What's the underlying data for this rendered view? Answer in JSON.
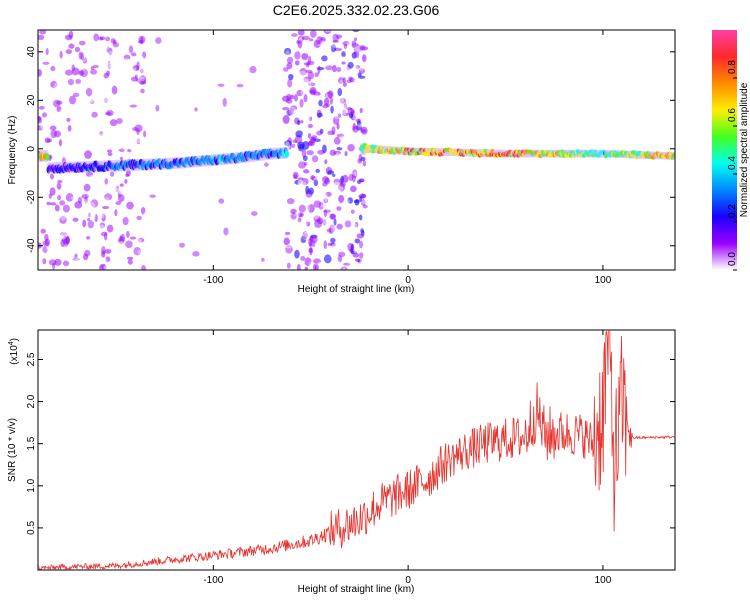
{
  "title": "C2E6.2025.332.02.23.G06",
  "chart_data": [
    {
      "type": "heatmap",
      "xlabel": "Height of straight line (km)",
      "ylabel": "Frequency (Hz)",
      "xlim": [
        -190,
        137
      ],
      "ylim": [
        -50,
        49
      ],
      "x_ticks": [
        "-100",
        "0",
        "100"
      ],
      "y_ticks": [
        "-40",
        "-20",
        "0",
        "20",
        "40"
      ],
      "colorbar": {
        "label": "Normalized spectral amplitude",
        "range": [
          0,
          1
        ],
        "ticks": [
          "0.0",
          "0.2",
          "0.4",
          "0.6",
          "0.8"
        ],
        "colors": [
          "#ff3ea8",
          "#ff2a2a",
          "#ff8a00",
          "#ffee00",
          "#44ff22",
          "#00ffee",
          "#0088ff",
          "#1a00ff",
          "#9a00ff",
          "#ffffff"
        ]
      },
      "ridge": [
        {
          "x": -185,
          "freq": -8,
          "amp": 0.25
        },
        {
          "x": -150,
          "freq": -7,
          "amp": 0.35
        },
        {
          "x": -120,
          "freq": -6,
          "amp": 0.4
        },
        {
          "x": -90,
          "freq": -4,
          "amp": 0.42
        },
        {
          "x": -70,
          "freq": -2,
          "amp": 0.4
        },
        {
          "x": -22,
          "freq": 0,
          "amp": 0.7
        },
        {
          "x": 0,
          "freq": -1,
          "amp": 0.85
        },
        {
          "x": 50,
          "freq": -2,
          "amp": 0.9
        },
        {
          "x": 100,
          "freq": -2,
          "amp": 0.6
        },
        {
          "x": 137,
          "freq": -3,
          "amp": 0.85
        }
      ]
    },
    {
      "type": "line",
      "xlabel": "Height of straight line (km)",
      "ylabel": "SNR (10 * v/v)",
      "y_multiplier": "(x10",
      "y_exponent": "4",
      "xlim": [
        -190,
        137
      ],
      "ylim": [
        0,
        2.85
      ],
      "x_ticks": [
        "-100",
        "0",
        "100"
      ],
      "y_ticks": [
        "0.5",
        "1.0",
        "1.5",
        "2.0",
        "2.5"
      ],
      "color": "#e8322d",
      "series": [
        {
          "x": [
            -190,
            -170,
            -150,
            -130,
            -110,
            -90,
            -70,
            -50,
            -35,
            -25,
            -15,
            0,
            10,
            20,
            30,
            40,
            50,
            60,
            66,
            70,
            80,
            90,
            95,
            100,
            103,
            106,
            110,
            115,
            137
          ],
          "y": [
            0.02,
            0.04,
            0.05,
            0.1,
            0.15,
            0.2,
            0.26,
            0.35,
            0.5,
            0.6,
            0.78,
            0.95,
            1.08,
            1.3,
            1.42,
            1.5,
            1.55,
            1.58,
            1.9,
            1.6,
            1.63,
            1.6,
            1.5,
            1.9,
            2.8,
            1.2,
            2.0,
            1.57,
            1.58
          ]
        }
      ]
    }
  ]
}
